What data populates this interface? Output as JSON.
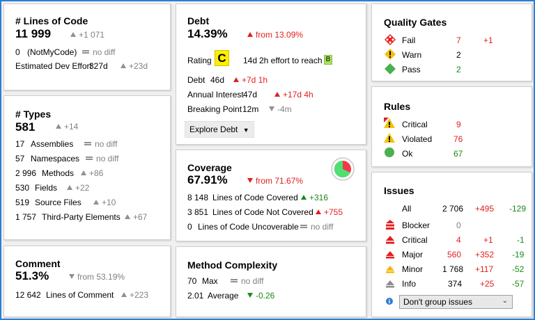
{
  "loc": {
    "title": "# Lines of Code",
    "value": "11 999",
    "delta": "+1 071",
    "r1_num": "0",
    "r1_label": "(NotMyCode)",
    "r1_delta": "no diff",
    "r2_label": "Estimated Dev Effort",
    "r2_num": "327d",
    "r2_delta": "+23d"
  },
  "types": {
    "title": "# Types",
    "value": "581",
    "delta": "+14",
    "rows": [
      {
        "num": "17",
        "label": "Assemblies",
        "delta": "no diff"
      },
      {
        "num": "57",
        "label": "Namespaces",
        "delta": "no diff"
      },
      {
        "num": "2 996",
        "label": "Methods",
        "delta": "+86"
      },
      {
        "num": "530",
        "label": "Fields",
        "delta": "+22"
      },
      {
        "num": "519",
        "label": "Source Files",
        "delta": "+10"
      },
      {
        "num": "1 757",
        "label": "Third-Party Elements",
        "delta": "+67"
      }
    ]
  },
  "comment": {
    "title": "Comment",
    "value": "51.3%",
    "delta": "from 53.19%",
    "r1_num": "12 642",
    "r1_label": "Lines of Comment",
    "r1_delta": "+223"
  },
  "debt": {
    "title": "Debt",
    "value": "14.39%",
    "delta": "from 13.09%",
    "rating_label": "Rating",
    "rating": "C",
    "effort_time": "14d",
    "effort_text": "2h effort to reach",
    "target_rating": "B",
    "r1_label": "Debt",
    "r1_num": "46d",
    "r1_delta": "+7d  1h",
    "r2_label": "Annual Interest",
    "r2_num": "47d",
    "r2_delta": "+17d  4h",
    "r3_label": "Breaking Point",
    "r3_num": "12m",
    "r3_delta": "-4m",
    "explore": "Explore Debt"
  },
  "coverage": {
    "title": "Coverage",
    "value": "67.91%",
    "delta": "from 71.67%",
    "fraction": 0.6791,
    "rows": [
      {
        "num": "8 148",
        "label": "Lines of Code Covered",
        "delta": "+316"
      },
      {
        "num": "3 851",
        "label": "Lines of Code Not Covered",
        "delta": "+755"
      },
      {
        "num": "0",
        "label": "Lines of Code Uncoverable",
        "delta": "no diff"
      }
    ]
  },
  "complexity": {
    "title": "Method Complexity",
    "r1_num": "70",
    "r1_label": "Max",
    "r1_delta": "no diff",
    "r2_num": "2.01",
    "r2_label": "Average",
    "r2_delta": "-0.26"
  },
  "gates": {
    "title": "Quality Gates",
    "rows": [
      {
        "label": "Fail",
        "count": "7",
        "delta": "+1"
      },
      {
        "label": "Warn",
        "count": "2",
        "delta": ""
      },
      {
        "label": "Pass",
        "count": "2",
        "delta": ""
      }
    ]
  },
  "rules": {
    "title": "Rules",
    "rows": [
      {
        "label": "Critical",
        "count": "9"
      },
      {
        "label": "Violated",
        "count": "76"
      },
      {
        "label": "Ok",
        "count": "67"
      }
    ]
  },
  "issues": {
    "title": "Issues",
    "rows": [
      {
        "label": "All",
        "count": "2 706",
        "added": "+495",
        "removed": "-129"
      },
      {
        "label": "Blocker",
        "count": "0",
        "added": "",
        "removed": ""
      },
      {
        "label": "Critical",
        "count": "4",
        "added": "+1",
        "removed": "-1"
      },
      {
        "label": "Major",
        "count": "560",
        "added": "+352",
        "removed": "-19"
      },
      {
        "label": "Minor",
        "count": "1 768",
        "added": "+117",
        "removed": "-52"
      },
      {
        "label": "Info",
        "count": "374",
        "added": "+25",
        "removed": "-57"
      }
    ],
    "group_select": "Don't group issues"
  },
  "colors": {
    "accent": "#2a7fd6",
    "red": "#e02020",
    "green": "#1a8a1a",
    "rating_c": "#ffee00",
    "rating_b": "#a8e060"
  }
}
